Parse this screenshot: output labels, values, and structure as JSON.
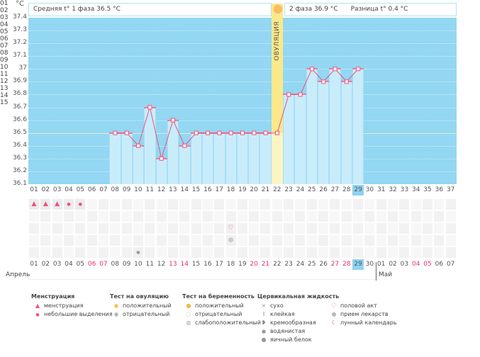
{
  "unit": "°C",
  "header": {
    "phase1": "Средняя t° 1 фаза 36.5 °С",
    "phase2": "2 фаза 36.9 °С",
    "diff": "Разница t° 0.4 °С"
  },
  "ovulation_label": "ОВУЛЯЦИЯ",
  "y_ticks": [
    "37.4",
    "37.3",
    "37.2",
    "37.1",
    "37",
    "36.9",
    "36.8",
    "36.7",
    "36.6",
    "36.5",
    "36.4",
    "36.3",
    "36.2",
    "36.1"
  ],
  "cycle_days": [
    "01",
    "02",
    "03",
    "04",
    "05",
    "06",
    "07",
    "08",
    "09",
    "10",
    "11",
    "12",
    "13",
    "14",
    "15",
    "16",
    "17",
    "18",
    "19",
    "20",
    "21",
    "22",
    "23",
    "24",
    "25",
    "26",
    "27",
    "28",
    "29",
    "30",
    "31",
    "32",
    "33",
    "34",
    "35",
    "36",
    "37"
  ],
  "selected_day": "29",
  "ovulation_day": 22,
  "cover_line": 36.5,
  "next_cycle_days": [
    "01",
    "02",
    "03",
    "04",
    "05",
    "06",
    "07",
    "08",
    "09",
    "10",
    "11",
    "12",
    "13",
    "14",
    "15"
  ],
  "temperatures": [
    {
      "d": 8,
      "t": 36.5
    },
    {
      "d": 9,
      "t": 36.5
    },
    {
      "d": 10,
      "t": 36.4
    },
    {
      "d": 11,
      "t": 36.7
    },
    {
      "d": 12,
      "t": 36.3
    },
    {
      "d": 13,
      "t": 36.6
    },
    {
      "d": 14,
      "t": 36.4
    },
    {
      "d": 15,
      "t": 36.5
    },
    {
      "d": 16,
      "t": 36.5
    },
    {
      "d": 17,
      "t": 36.5
    },
    {
      "d": 18,
      "t": 36.5
    },
    {
      "d": 19,
      "t": 36.5
    },
    {
      "d": 20,
      "t": 36.5
    },
    {
      "d": 21,
      "t": 36.5
    },
    {
      "d": 22,
      "t": 36.5
    },
    {
      "d": 23,
      "t": 36.8
    },
    {
      "d": 24,
      "t": 36.8
    },
    {
      "d": 25,
      "t": 37.0
    },
    {
      "d": 26,
      "t": 36.9
    },
    {
      "d": 27,
      "t": 37.0
    },
    {
      "d": 28,
      "t": 36.9
    },
    {
      "d": 29,
      "t": 37.0
    }
  ],
  "symbols": [
    {
      "row": 0,
      "d": 1,
      "icon": "menstruation"
    },
    {
      "row": 0,
      "d": 2,
      "icon": "menstruation"
    },
    {
      "row": 0,
      "d": 3,
      "icon": "menstruation"
    },
    {
      "row": 0,
      "d": 4,
      "icon": "spotting"
    },
    {
      "row": 0,
      "d": 5,
      "icon": "spotting"
    },
    {
      "row": 2,
      "d": 18,
      "icon": "heart"
    },
    {
      "row": 3,
      "d": 18,
      "icon": "pill"
    },
    {
      "row": 4,
      "d": 10,
      "icon": "watery"
    }
  ],
  "dates": [
    {
      "t": "01"
    },
    {
      "t": "02"
    },
    {
      "t": "03"
    },
    {
      "t": "04"
    },
    {
      "t": "05"
    },
    {
      "t": "06",
      "w": 1
    },
    {
      "t": "07",
      "w": 1
    },
    {
      "t": "08"
    },
    {
      "t": "09"
    },
    {
      "t": "10"
    },
    {
      "t": "11"
    },
    {
      "t": "12"
    },
    {
      "t": "13",
      "w": 1
    },
    {
      "t": "14",
      "w": 1
    },
    {
      "t": "15"
    },
    {
      "t": "16"
    },
    {
      "t": "17"
    },
    {
      "t": "18"
    },
    {
      "t": "19"
    },
    {
      "t": "20",
      "w": 1
    },
    {
      "t": "21",
      "w": 1
    },
    {
      "t": "22"
    },
    {
      "t": "23"
    },
    {
      "t": "24"
    },
    {
      "t": "25"
    },
    {
      "t": "26"
    },
    {
      "t": "27",
      "w": 1
    },
    {
      "t": "28",
      "w": 1
    },
    {
      "t": "29",
      "sel": 1
    },
    {
      "t": "30"
    },
    {
      "t": "01"
    },
    {
      "t": "02"
    },
    {
      "t": "03"
    },
    {
      "t": "04",
      "w": 1
    },
    {
      "t": "05",
      "w": 1
    },
    {
      "t": "06"
    },
    {
      "t": "07"
    }
  ],
  "months": {
    "april": "Апрель",
    "may": "Май"
  },
  "legend": {
    "menstruation": {
      "title": "Менструация",
      "items": [
        "менструация",
        "небольшие выделения"
      ]
    },
    "ovulation_test": {
      "title": "Тест на овуляцию",
      "items": [
        "положительный",
        "отрицательный"
      ]
    },
    "pregnancy_test": {
      "title": "Тест на беременность",
      "items": [
        "положительный",
        "отрицательный",
        "слабоположительный"
      ]
    },
    "cervical": {
      "title": "Цервикальная жидкость",
      "items": [
        "сухо",
        "клейкая",
        "кремообразная",
        "водянистая",
        "яичный белок"
      ]
    },
    "other": {
      "items": [
        "половой акт",
        "прием лекарств",
        "лунный календарь"
      ]
    }
  },
  "colors": {
    "plot": "#93d7f2",
    "bar": "#c9ecfb",
    "line": "#f0507a",
    "ovulation": "#fbe88a",
    "weekend": "#e8326a"
  }
}
